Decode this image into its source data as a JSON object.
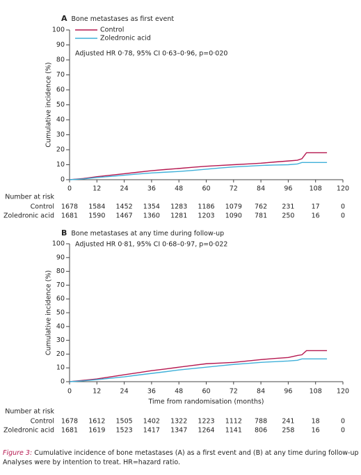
{
  "chart_data": [
    {
      "type": "line",
      "panel": "A",
      "title": "Bone metastases as first event",
      "ylabel": "Cumulative incidence (%)",
      "annotation": "Adjusted HR 0·78, 95% CI 0·63–0·96, p=0·020",
      "x": [
        0,
        6,
        12,
        18,
        24,
        30,
        36,
        42,
        48,
        54,
        60,
        66,
        72,
        78,
        84,
        90,
        96,
        100,
        102,
        104,
        108,
        113
      ],
      "series": [
        {
          "name": "Control",
          "color": "#b5174f",
          "values": [
            0,
            0.8,
            2,
            3,
            4,
            5,
            6,
            6.8,
            7.5,
            8.3,
            9,
            9.5,
            10,
            10.5,
            11,
            11.8,
            12.5,
            13,
            14,
            18,
            18,
            18
          ]
        },
        {
          "name": "Zoledronic acid",
          "color": "#3fb0d9",
          "values": [
            0,
            0.5,
            1.5,
            2.2,
            3,
            3.8,
            4.5,
            5,
            5.5,
            6.2,
            7,
            7.8,
            8.5,
            9,
            9.5,
            9.8,
            10,
            10.5,
            11.5,
            11.5,
            11.5,
            11.5
          ]
        }
      ],
      "xlim": [
        0,
        120
      ],
      "xticks": [
        0,
        12,
        24,
        36,
        48,
        60,
        72,
        84,
        96,
        108,
        120
      ],
      "ylim": [
        0,
        100
      ],
      "yticks": [
        0,
        10,
        20,
        30,
        40,
        50,
        60,
        70,
        80,
        90,
        100
      ],
      "legend": true,
      "risk_table": {
        "title": "Number at risk",
        "rows": [
          {
            "name": "Control",
            "values": [
              1678,
              1584,
              1452,
              1354,
              1283,
              1186,
              1079,
              762,
              231,
              17,
              0
            ]
          },
          {
            "name": "Zoledronic acid",
            "values": [
              1681,
              1590,
              1467,
              1360,
              1281,
              1203,
              1090,
              781,
              250,
              16,
              0
            ]
          }
        ]
      }
    },
    {
      "type": "line",
      "panel": "B",
      "title": "Bone metastases at any time during follow-up",
      "ylabel": "Cumulative incidence (%)",
      "xlabel": "Time from randomisation (months)",
      "annotation": "Adjusted HR 0·81, 95% CI 0·68–0·97, p=0·022",
      "x": [
        0,
        6,
        12,
        18,
        24,
        30,
        36,
        42,
        48,
        54,
        60,
        66,
        72,
        78,
        84,
        90,
        96,
        100,
        102,
        104,
        108,
        113
      ],
      "series": [
        {
          "color": "#b5174f",
          "values": [
            0,
            1,
            2,
            3.5,
            5,
            6.5,
            8,
            9.2,
            10.5,
            11.8,
            13,
            13.5,
            14,
            15,
            16,
            16.8,
            17.5,
            19,
            19.5,
            22.5,
            22.5,
            22.5
          ]
        },
        {
          "color": "#3fb0d9",
          "values": [
            0,
            0.6,
            1.5,
            2.5,
            3.5,
            4.8,
            6,
            7.2,
            8.5,
            9.5,
            10.5,
            11.5,
            12.5,
            13.2,
            14,
            14.5,
            15,
            15.5,
            16.5,
            16.5,
            16.5,
            16.5
          ]
        }
      ],
      "xlim": [
        0,
        120
      ],
      "xticks": [
        0,
        12,
        24,
        36,
        48,
        60,
        72,
        84,
        96,
        108,
        120
      ],
      "ylim": [
        0,
        100
      ],
      "yticks": [
        0,
        10,
        20,
        30,
        40,
        50,
        60,
        70,
        80,
        90,
        100
      ],
      "legend": false,
      "risk_table": {
        "title": "Number at risk",
        "rows": [
          {
            "name": "Control",
            "values": [
              1678,
              1612,
              1505,
              1402,
              1322,
              1223,
              1112,
              788,
              241,
              18,
              0
            ]
          },
          {
            "name": "Zoledronic acid",
            "values": [
              1681,
              1619,
              1523,
              1417,
              1347,
              1264,
              1141,
              806,
              258,
              16,
              0
            ]
          }
        ]
      }
    }
  ],
  "caption": {
    "label": "Figure 3:",
    "text": "Cumulative incidence of bone metastases (A) as a first event and (B) at any time during follow-up",
    "note": "Analyses were by intention to treat. HR=hazard ratio."
  }
}
